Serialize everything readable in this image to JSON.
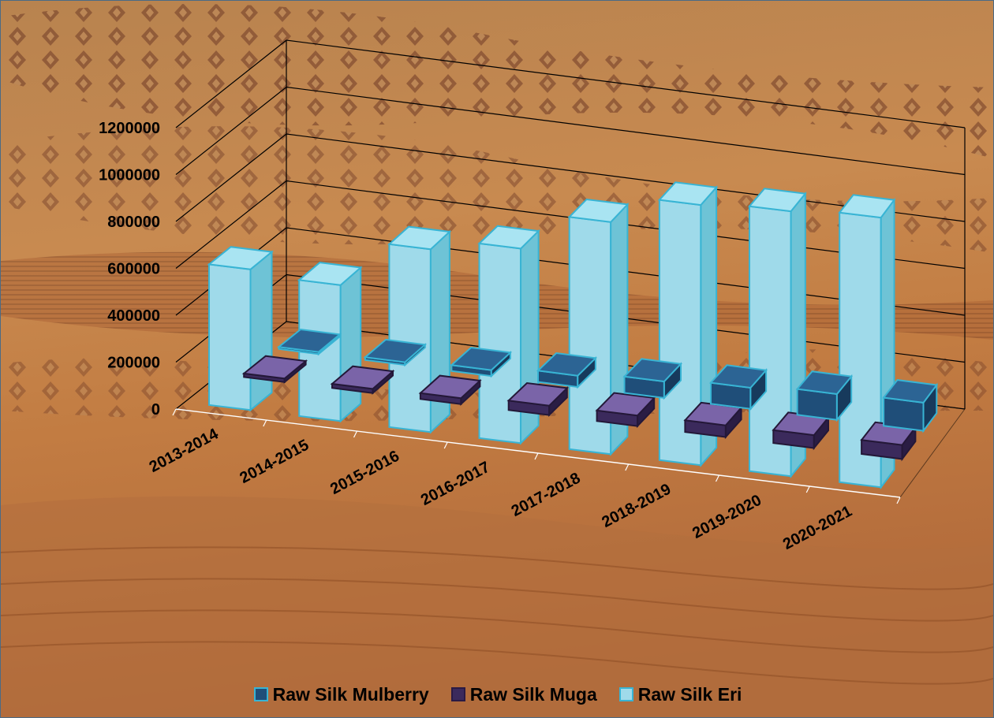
{
  "chart_data": {
    "type": "bar",
    "title": "",
    "xlabel": "",
    "ylabel": "",
    "ylim": [
      0,
      1200000
    ],
    "y_ticks": [
      "0",
      "200000",
      "400000",
      "600000",
      "800000",
      "1000000",
      "1200000"
    ],
    "y_tick_values": [
      0,
      200000,
      400000,
      600000,
      800000,
      1000000,
      1200000
    ],
    "categories": [
      "2013-2014",
      "2014-2015",
      "2015-2016",
      "2016-2017",
      "2017-2018",
      "2018-2019",
      "2019-2020",
      "2020-2021"
    ],
    "grid": true,
    "legend_position": "bottom",
    "series": [
      {
        "name": "Raw Silk Mulberry",
        "values": [
          5000,
          12000,
          25000,
          48000,
          70000,
          90000,
          110000,
          120000
        ],
        "color": "#1f4e79"
      },
      {
        "name": "Raw Silk Muga",
        "values": [
          15000,
          18000,
          25000,
          40000,
          45000,
          50000,
          55000,
          60000
        ],
        "color": "#3b2a5c"
      },
      {
        "name": "Raw Silk Eri",
        "values": [
          600000,
          580000,
          780000,
          830000,
          990000,
          1110000,
          1130000,
          1150000
        ],
        "color": "#9fdaea"
      }
    ]
  },
  "colors": {
    "background_light": "#c98a52",
    "background_dark": "#8a4a22",
    "gridline": "#000000",
    "bar_edge": "#38b4d4"
  }
}
